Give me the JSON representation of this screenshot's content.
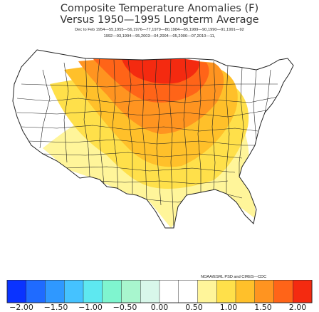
{
  "title": {
    "line1": "Composite Temperature Anomalies (F)",
    "line2": "Versus 1950—1995 Longterm Average"
  },
  "composite_dates": {
    "line1": "Dec to Feb   1954—55,1955—56,1976—77,1979—80,1984—85,1989—90,1990—91,1991—92",
    "line2": "1992—93,1994—95,2003—04,2004—05,2006—07,2010—11,"
  },
  "credit": "NOAA/ESRL PSD and CIRES—CDC",
  "legend": {
    "ticks": [
      "−2.00",
      "−1.50",
      "−1.00",
      "−0.50",
      "0.00",
      "0.50",
      "1.00",
      "1.50",
      "2.00"
    ],
    "colors": [
      "#0a33ff",
      "#1f6bff",
      "#2f98ff",
      "#45c2ff",
      "#5ee8f0",
      "#7ff5cf",
      "#a8f6ce",
      "#d8f7ea",
      "#ffffff",
      "#ffffff",
      "#fff59a",
      "#ffe04a",
      "#ffc02a",
      "#ff9420",
      "#ff6418",
      "#f42a10"
    ]
  },
  "map_regions": [
    {
      "name": "northern-plains-and-upper-midwest",
      "anomaly": 2.0
    },
    {
      "name": "northern-rockies-and-great-lakes",
      "anomaly": 1.5
    },
    {
      "name": "central-us",
      "anomaly": 1.0
    },
    {
      "name": "southern-rockies-and-ohio-valley",
      "anomaly": 0.5
    },
    {
      "name": "southwest-and-gulf-coast",
      "anomaly": 0.25
    },
    {
      "name": "pacific-coast-and-southeast",
      "anomaly": 0.0
    }
  ]
}
